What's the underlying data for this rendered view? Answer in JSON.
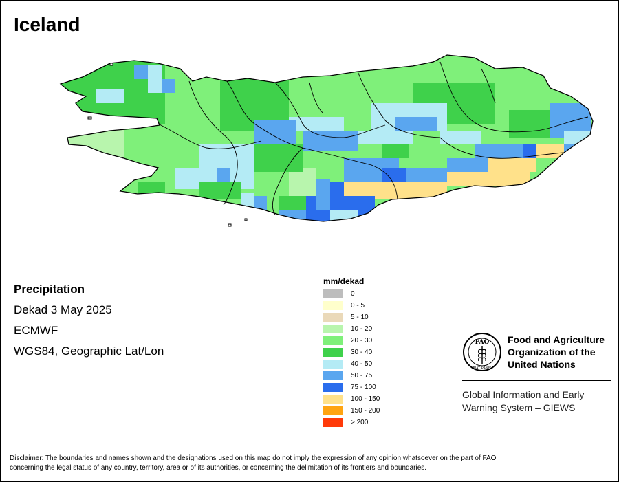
{
  "title": "Iceland",
  "info": {
    "heading": "Precipitation",
    "period": "Dekad 3 May 2025",
    "source": "ECMWF",
    "projection": "WGS84, Geographic Lat/Lon"
  },
  "legend": {
    "title": "mm/dekad",
    "classes": [
      {
        "label": "0",
        "color": "#bdbdbd"
      },
      {
        "label": "0 - 5",
        "color": "#ffffcc"
      },
      {
        "label": "5 - 10",
        "color": "#ead9b9"
      },
      {
        "label": "10 - 20",
        "color": "#b8f5ad"
      },
      {
        "label": "20 - 30",
        "color": "#7ff07a"
      },
      {
        "label": "30 - 40",
        "color": "#3fd14b"
      },
      {
        "label": "40 - 50",
        "color": "#b4ebf5"
      },
      {
        "label": "50 - 75",
        "color": "#5aa6ef"
      },
      {
        "label": "75 - 100",
        "color": "#2a6ded"
      },
      {
        "label": "100 - 150",
        "color": "#ffe18a"
      },
      {
        "label": "150 - 200",
        "color": "#ffa411"
      },
      {
        "label": "> 200",
        "color": "#ff3a09"
      }
    ]
  },
  "organization": {
    "name_line1": "Food and Agriculture",
    "name_line2": "Organization of the",
    "name_line3": "United Nations",
    "logo_text": "FAO",
    "logo_motto": "FIAT PANIS",
    "system_line1": "Global Information and Early",
    "system_line2": "Warning System – GIEWS"
  },
  "disclaimer": {
    "line1": "Disclaimer: The boundaries and names shown and the designations used on this map do not imply the expression of any opinion whatsoever on the part of FAO",
    "line2": "concerning the legal status of any country, territory, area or of its authorities, or concerning the delimitation of its frontiers and boundaries."
  }
}
